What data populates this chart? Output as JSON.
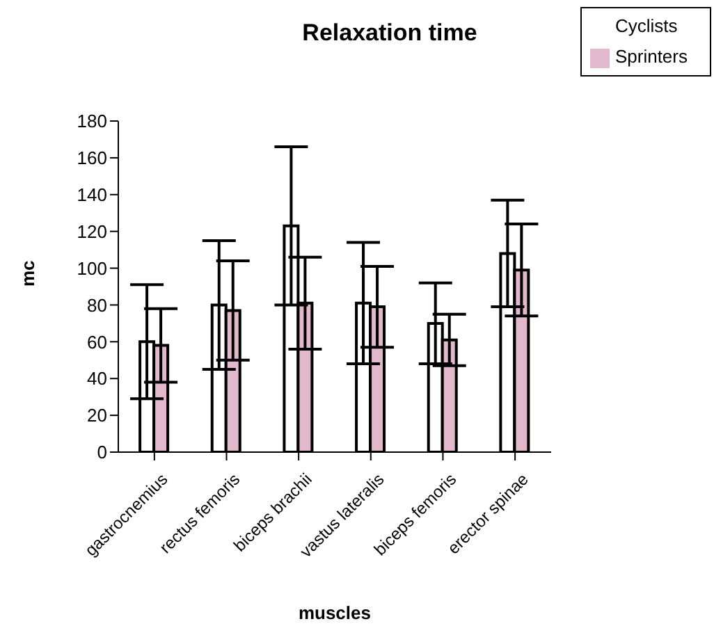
{
  "chart_data": {
    "type": "bar",
    "title": "Relaxation time",
    "xlabel": "muscles",
    "ylabel": "mc",
    "categories": [
      "gastrocnemius",
      "rectus femoris",
      "biceps brachii",
      "vastus lateralis",
      "biceps femoris",
      "erector spinae"
    ],
    "series": [
      {
        "name": "Cyclists",
        "color": "#ffffff",
        "values": [
          60,
          80,
          123,
          81,
          70,
          108
        ],
        "errors": [
          31,
          35,
          43,
          33,
          22,
          29
        ]
      },
      {
        "name": "Sprinters",
        "color": "#e2b8cc",
        "values": [
          58,
          77,
          81,
          79,
          61,
          99
        ],
        "errors": [
          20,
          27,
          25,
          22,
          14,
          25
        ]
      }
    ],
    "ylim": [
      0,
      180
    ],
    "yticks": [
      0,
      20,
      40,
      60,
      80,
      100,
      120,
      140,
      160,
      180
    ],
    "grid": false,
    "legend": "top right"
  }
}
